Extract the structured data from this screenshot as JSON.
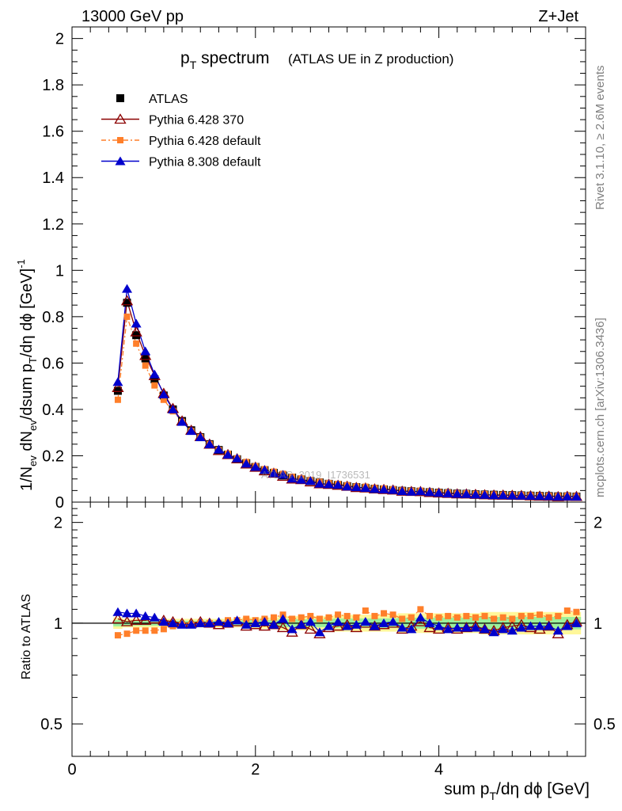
{
  "header": {
    "left": "13000 GeV pp",
    "right": "Z+Jet"
  },
  "title": {
    "main": "p",
    "main_sub": "T",
    "main_rest": " spectrum",
    "paren": "(ATLAS UE in Z production)"
  },
  "side_labels": {
    "rivet": "Rivet 3.1.10, ≥ 2.6M events",
    "mcplots": "mcplots.cern.ch [arXiv:1306.3436]"
  },
  "watermark": "ATLAS_2019_I1736531",
  "legend": [
    {
      "label": "ATLAS",
      "color": "#000000",
      "marker": "square"
    },
    {
      "label": "Pythia 6.428 370",
      "color": "#8b0000",
      "marker": "open-triangle"
    },
    {
      "label": "Pythia 6.428 default",
      "color": "#ff7f2a",
      "marker": "small-square"
    },
    {
      "label": "Pythia 8.308 default",
      "color": "#0000cc",
      "marker": "triangle"
    }
  ],
  "chart_data": {
    "type": "scatter",
    "xlabel": "sum p_T/dη dϕ [GeV]",
    "ylabel": "1/N_ev dN_ev/dsum p_T/dη dϕ [GeV]^-1",
    "ratio_ylabel": "Ratio to ATLAS",
    "xlim": [
      0,
      5.6
    ],
    "ylim": [
      0,
      2.05
    ],
    "ratio_ylim": [
      0.4,
      2.3
    ],
    "x_ticks": [
      "0",
      "2",
      "4"
    ],
    "y_ticks": [
      "0",
      "0.2",
      "0.4",
      "0.6",
      "0.8",
      "1",
      "1.2",
      "1.4",
      "1.6",
      "1.8",
      "2"
    ],
    "ratio_ticks": [
      "0.5",
      "1",
      "2"
    ],
    "x": [
      0.5,
      0.6,
      0.7,
      0.8,
      0.9,
      1.0,
      1.1,
      1.2,
      1.3,
      1.4,
      1.5,
      1.6,
      1.7,
      1.8,
      1.9,
      2.0,
      2.1,
      2.2,
      2.3,
      2.4,
      2.5,
      2.6,
      2.7,
      2.8,
      2.9,
      3.0,
      3.1,
      3.2,
      3.3,
      3.4,
      3.5,
      3.6,
      3.7,
      3.8,
      3.9,
      4.0,
      4.1,
      4.2,
      4.3,
      4.4,
      4.5,
      4.6,
      4.7,
      4.8,
      4.9,
      5.0,
      5.1,
      5.2,
      5.3,
      5.4,
      5.5
    ],
    "series": [
      {
        "name": "ATLAS",
        "values": [
          0.48,
          0.86,
          0.72,
          0.62,
          0.53,
          0.46,
          0.4,
          0.35,
          0.31,
          0.28,
          0.25,
          0.225,
          0.205,
          0.185,
          0.168,
          0.152,
          0.138,
          0.126,
          0.115,
          0.106,
          0.098,
          0.091,
          0.085,
          0.079,
          0.074,
          0.069,
          0.065,
          0.061,
          0.058,
          0.055,
          0.052,
          0.049,
          0.047,
          0.045,
          0.043,
          0.041,
          0.039,
          0.037,
          0.036,
          0.034,
          0.033,
          0.032,
          0.031,
          0.03,
          0.029,
          0.028,
          0.027,
          0.026,
          0.025,
          0.025,
          0.024
        ],
        "ratio": [
          1,
          1,
          1,
          1,
          1,
          1,
          1,
          1,
          1,
          1,
          1,
          1,
          1,
          1,
          1,
          1,
          1,
          1,
          1,
          1,
          1,
          1,
          1,
          1,
          1,
          1,
          1,
          1,
          1,
          1,
          1,
          1,
          1,
          1,
          1,
          1,
          1,
          1,
          1,
          1,
          1,
          1,
          1,
          1,
          1,
          1,
          1,
          1,
          1,
          1,
          1
        ]
      },
      {
        "name": "Pythia 6.428 370",
        "ratio": [
          1.03,
          1.01,
          1.02,
          1.02,
          1.03,
          1.02,
          1.01,
          1.0,
          1.0,
          1.01,
          1.0,
          0.99,
          1.0,
          1.01,
          0.98,
          0.99,
          0.98,
          0.99,
          0.97,
          0.94,
          0.99,
          0.96,
          0.93,
          0.97,
          0.98,
          0.99,
          0.97,
          1.0,
          0.98,
          0.99,
          1.0,
          0.96,
          0.98,
          1.01,
          0.97,
          0.96,
          0.97,
          0.96,
          0.97,
          0.98,
          0.96,
          0.95,
          0.97,
          0.98,
          0.99,
          0.97,
          0.96,
          0.98,
          0.93,
          0.99,
          1.01
        ]
      },
      {
        "name": "Pythia 6.428 default",
        "ratio": [
          0.92,
          0.93,
          0.95,
          0.95,
          0.95,
          0.96,
          0.98,
          0.99,
          0.99,
          1.0,
          1.0,
          1.0,
          1.02,
          1.02,
          1.03,
          1.02,
          1.03,
          1.04,
          1.06,
          1.03,
          1.04,
          1.05,
          1.03,
          1.04,
          1.06,
          1.05,
          1.04,
          1.09,
          1.05,
          1.07,
          1.06,
          1.03,
          1.04,
          1.1,
          1.05,
          1.04,
          1.05,
          1.04,
          1.05,
          1.04,
          1.05,
          1.03,
          1.04,
          1.03,
          1.05,
          1.05,
          1.06,
          1.04,
          1.05,
          1.09,
          1.08
        ]
      },
      {
        "name": "Pythia 8.308 default",
        "ratio": [
          1.08,
          1.07,
          1.07,
          1.05,
          1.04,
          1.01,
          1.0,
          0.99,
          0.99,
          1.0,
          1.0,
          1.01,
          1.0,
          1.02,
          0.99,
          1.0,
          1.01,
          0.99,
          1.03,
          0.96,
          0.99,
          1.01,
          0.94,
          0.98,
          1.01,
          0.98,
          0.99,
          1.01,
          0.98,
          1.0,
          1.01,
          0.97,
          0.96,
          1.04,
          1.0,
          0.98,
          0.96,
          0.97,
          0.97,
          0.97,
          0.96,
          0.94,
          0.96,
          0.95,
          0.97,
          0.98,
          0.98,
          0.98,
          0.95,
          0.98,
          1.0
        ]
      }
    ],
    "band_halfwidth": [
      0.04,
      0.03,
      0.03,
      0.03,
      0.03,
      0.03,
      0.03,
      0.03,
      0.03,
      0.03,
      0.03,
      0.03,
      0.03,
      0.03,
      0.04,
      0.04,
      0.04,
      0.04,
      0.05,
      0.05,
      0.05,
      0.05,
      0.05,
      0.05,
      0.06,
      0.06,
      0.06,
      0.06,
      0.06,
      0.06,
      0.06,
      0.07,
      0.07,
      0.07,
      0.07,
      0.07,
      0.07,
      0.07,
      0.07,
      0.07,
      0.08,
      0.08,
      0.08,
      0.08,
      0.08,
      0.08,
      0.08,
      0.08,
      0.08,
      0.08,
      0.08
    ]
  }
}
